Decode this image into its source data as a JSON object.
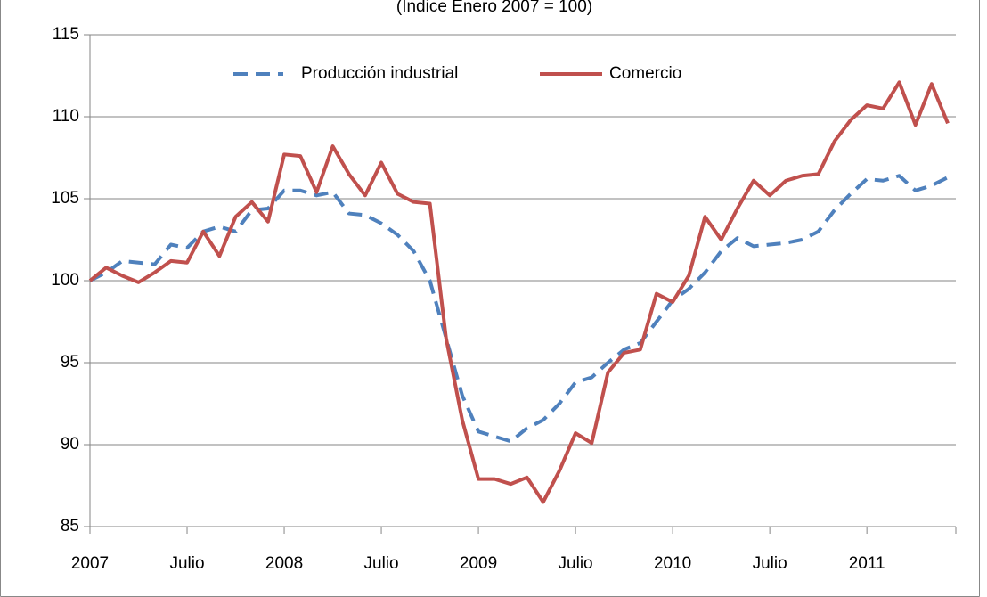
{
  "chart_data": {
    "type": "line",
    "title": "(Índice Enero 2007 = 100)",
    "categories": [
      "2007",
      null,
      null,
      null,
      null,
      null,
      "Julio",
      null,
      null,
      null,
      null,
      null,
      "2008",
      null,
      null,
      null,
      null,
      null,
      "Julio",
      null,
      null,
      null,
      null,
      null,
      "2009",
      null,
      null,
      null,
      null,
      null,
      "Julio",
      null,
      null,
      null,
      null,
      null,
      "2010",
      null,
      null,
      null,
      null,
      null,
      "Julio",
      null,
      null,
      null,
      null,
      null,
      "2011",
      null,
      null,
      null,
      null,
      null
    ],
    "series": [
      {
        "name": "Producción industrial",
        "color": "#4f81bd",
        "dash": true,
        "values": [
          100,
          100.5,
          101.2,
          101.1,
          101.0,
          102.2,
          102.0,
          103.0,
          103.3,
          103.0,
          104.3,
          104.4,
          105.5,
          105.5,
          105.2,
          105.4,
          104.1,
          104.0,
          103.5,
          102.8,
          101.8,
          100.0,
          96.5,
          93.0,
          90.8,
          90.5,
          90.2,
          91.0,
          91.5,
          92.5,
          93.8,
          94.1,
          95.0,
          95.8,
          96.2,
          97.5,
          98.8,
          99.5,
          100.5,
          101.8,
          102.6,
          102.1,
          102.2,
          102.3,
          102.5,
          103.0,
          104.3,
          105.3,
          106.2,
          106.1,
          106.4,
          105.5,
          105.8,
          106.3
        ]
      },
      {
        "name": "Comercio",
        "color": "#c0504d",
        "dash": false,
        "values": [
          100,
          100.8,
          100.3,
          99.9,
          100.5,
          101.2,
          101.1,
          103.0,
          101.5,
          103.9,
          104.8,
          103.6,
          107.7,
          107.6,
          105.4,
          108.2,
          106.5,
          105.2,
          107.2,
          105.3,
          104.8,
          104.7,
          96.5,
          91.5,
          87.9,
          87.9,
          87.6,
          88.0,
          86.5,
          88.4,
          90.7,
          90.1,
          94.4,
          95.6,
          95.8,
          99.2,
          98.7,
          100.3,
          103.9,
          102.5,
          104.4,
          106.1,
          105.2,
          106.1,
          106.4,
          106.5,
          108.5,
          109.8,
          110.7,
          110.5,
          112.1,
          109.5,
          112.0,
          109.6
        ]
      }
    ],
    "ylim": [
      85,
      115
    ],
    "yticks": [
      85,
      90,
      95,
      100,
      105,
      110,
      115
    ],
    "grid": true,
    "legend": "top"
  }
}
